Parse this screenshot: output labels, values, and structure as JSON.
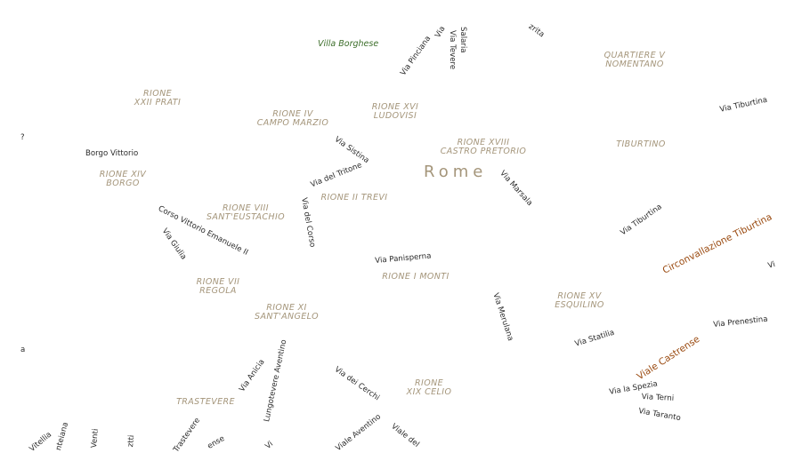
{
  "map": {
    "city": "Rome",
    "park": "Villa Borghese",
    "districts": [
      {
        "id": "quartiere-nomentano",
        "lines": [
          "QUARTIERE V",
          "NOMENTANO"
        ]
      },
      {
        "id": "rione-prati",
        "lines": [
          "RIONE",
          "XXII PRATI"
        ]
      },
      {
        "id": "rione-campo-marzio",
        "lines": [
          "RIONE IV",
          "CAMPO MARZIO"
        ]
      },
      {
        "id": "rione-ludovisi",
        "lines": [
          "RIONE XVI",
          "LUDOVISI"
        ]
      },
      {
        "id": "rione-castro-pretorio",
        "lines": [
          "RIONE XVIII",
          "CASTRO PRETORIO"
        ]
      },
      {
        "id": "tiburtino",
        "lines": [
          "TIBURTINO"
        ]
      },
      {
        "id": "rione-borgo",
        "lines": [
          "RIONE XIV",
          "BORGO"
        ]
      },
      {
        "id": "rione-trevi",
        "lines": [
          "RIONE II TREVI"
        ]
      },
      {
        "id": "rione-sant-eustachio",
        "lines": [
          "RIONE VIII",
          "SANT'EUSTACHIO"
        ]
      },
      {
        "id": "rione-monti",
        "lines": [
          "RIONE I MONTI"
        ]
      },
      {
        "id": "rione-regola",
        "lines": [
          "RIONE VII",
          "REGOLA"
        ]
      },
      {
        "id": "rione-esquilino",
        "lines": [
          "RIONE XV",
          "ESQUILINO"
        ]
      },
      {
        "id": "rione-sant-angelo",
        "lines": [
          "RIONE XI",
          "SANT'ANGELO"
        ]
      },
      {
        "id": "rione-celio",
        "lines": [
          "RIONE",
          "XIX CELIO"
        ]
      },
      {
        "id": "trastevere",
        "lines": [
          "TRASTEVERE"
        ]
      }
    ],
    "streets": {
      "via_pinciana": "Via Pinciana",
      "via_salaria": "Salaria",
      "via_tevere": "Via Tevere",
      "via_v": "Via",
      "partial_top": "zrita",
      "via_tiburtina_east": "Via Tiburtina",
      "borgo_vittorio": "Borgo Vittorio",
      "via_sistina": "Via Sistina",
      "via_del_tritone": "Via del Tritone",
      "via_marsala": "Via Marsala",
      "via_del_corso": "Via del Corso",
      "corso_vittorio": "Corso Vittorio Emanuele II",
      "via_giulia": "Via Giulia",
      "via_panisperna": "Via Panisperna",
      "via_tiburtina": "Via Tiburtina",
      "via_merulana": "Via Merulana",
      "via_statilia": "Via Statilia",
      "via_prenestina": "Via Prenestina",
      "via_anicia": "Via Anicia",
      "lungotevere_aventino": "Lungotevere Aventino",
      "via_dei_cerchi": "Via dei Cerchi",
      "via_la_spezia": "Via la Spezia",
      "via_terni": "Via Terni",
      "via_taranto": "Via Taranto",
      "viale_aventino": "Viale Aventino",
      "viale_del": "Viale del",
      "via_vitellia": "Vitellia",
      "partial_nteiana": "nteiana",
      "partial_venti": "Venti",
      "partial_ztti": "ztti",
      "partial_trastevere": "Trastevere",
      "partial_ense": "ense",
      "partial_vi_bottom": "Vi",
      "partial_vi_right": "Vi",
      "partial_q": "?",
      "partial_a": "a"
    },
    "major_roads": {
      "circonvallazione": "Circonvallazione Tiburtina",
      "viale_castrense": "Viale Castrense"
    },
    "colors": {
      "district_label": "#a4957a",
      "street_label": "#2a2a2a",
      "major_road_label": "#9a4a10",
      "park_label": "#3c6e2a",
      "background": "#ffffff"
    }
  }
}
